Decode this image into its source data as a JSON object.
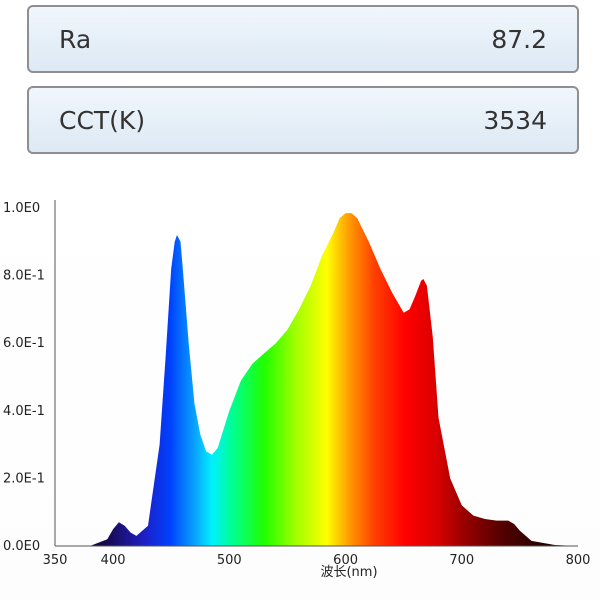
{
  "metrics": {
    "ra": {
      "label": "Ra",
      "value": "87.2"
    },
    "cct": {
      "label": "CCT(K)",
      "value": "3534"
    }
  },
  "chart_data": {
    "type": "area",
    "title": "",
    "xlabel": "波长(nm)",
    "ylabel": "",
    "xlim": [
      350,
      800
    ],
    "ylim": [
      0,
      1.0
    ],
    "x_ticks": [
      350,
      400,
      500,
      600,
      700,
      800
    ],
    "x_tick_labels": [
      "350",
      "400",
      "500",
      "600",
      "700",
      "800"
    ],
    "y_ticks": [
      0,
      0.2,
      0.4,
      0.6,
      0.8,
      1.0
    ],
    "y_tick_labels": [
      "0.0E0",
      "2.0E-1",
      "4.0E-1",
      "6.0E-1",
      "8.0E-1",
      "1.0E0"
    ],
    "fill": "visible-spectrum gradient by wavelength",
    "grid": false,
    "series": [
      {
        "x": [
          380,
          395,
          400,
          405,
          410,
          415,
          420,
          430,
          440,
          445,
          450,
          453,
          455,
          458,
          460,
          465,
          470,
          475,
          480,
          485,
          490,
          500,
          510,
          520,
          530,
          540,
          550,
          560,
          570,
          580,
          590,
          595,
          600,
          605,
          610,
          620,
          630,
          640,
          650,
          655,
          660,
          665,
          667,
          670,
          675,
          680,
          690,
          700,
          710,
          720,
          730,
          740,
          745,
          750,
          760,
          780,
          800
        ],
        "y": [
          0.0,
          0.02,
          0.05,
          0.07,
          0.06,
          0.04,
          0.03,
          0.06,
          0.3,
          0.55,
          0.82,
          0.9,
          0.92,
          0.9,
          0.82,
          0.6,
          0.42,
          0.33,
          0.28,
          0.27,
          0.29,
          0.4,
          0.49,
          0.54,
          0.57,
          0.6,
          0.64,
          0.7,
          0.77,
          0.86,
          0.93,
          0.97,
          0.985,
          0.985,
          0.97,
          0.9,
          0.82,
          0.75,
          0.69,
          0.7,
          0.74,
          0.785,
          0.79,
          0.77,
          0.62,
          0.38,
          0.2,
          0.12,
          0.09,
          0.08,
          0.075,
          0.075,
          0.065,
          0.045,
          0.015,
          0.003,
          0.0
        ]
      }
    ]
  }
}
